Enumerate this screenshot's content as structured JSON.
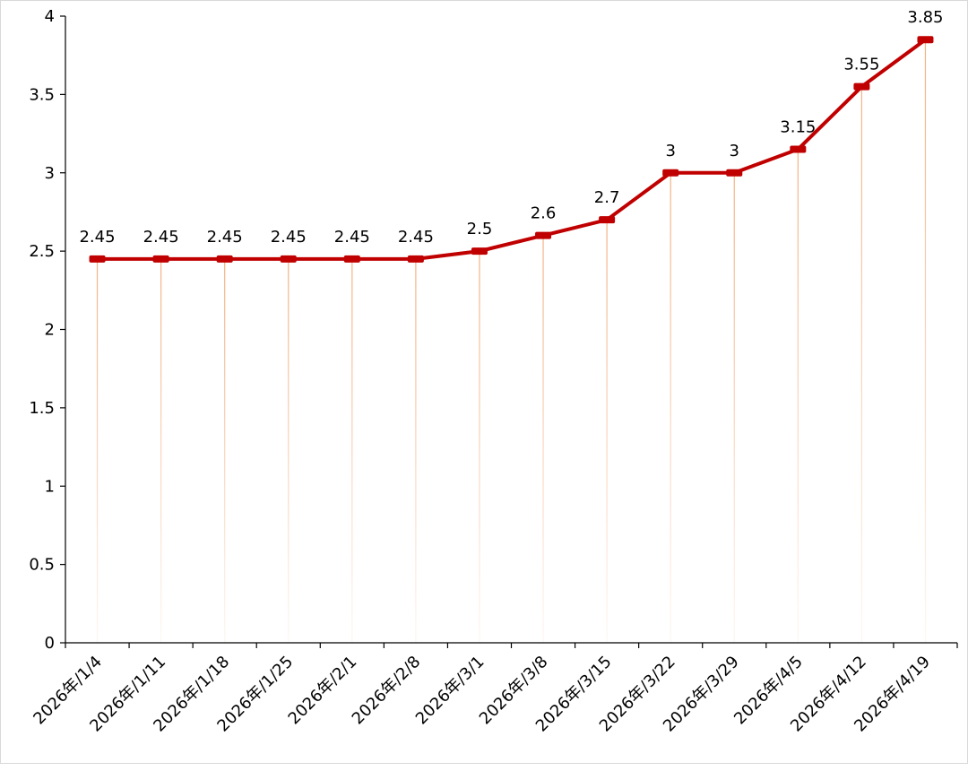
{
  "chart_data": {
    "type": "line",
    "title": "",
    "xlabel": "",
    "ylabel": "",
    "categories": [
      "2026年/1/4",
      "2026年/1/11",
      "2026年/1/18",
      "2026年/1/25",
      "2026年/2/1",
      "2026年/2/8",
      "2026年/3/1",
      "2026年/3/8",
      "2026年/3/15",
      "2026年/3/22",
      "2026年/3/29",
      "2026年/4/5",
      "2026年/4/12",
      "2026年/4/19"
    ],
    "series": [
      {
        "values": [
          2.45,
          2.45,
          2.45,
          2.45,
          2.45,
          2.45,
          2.5,
          2.6,
          2.7,
          3,
          3,
          3.15,
          3.55,
          3.85
        ],
        "data_labels": [
          "2.45",
          "2.45",
          "2.45",
          "2.45",
          "2.45",
          "2.45",
          "2.5",
          "2.6",
          "2.7",
          "3",
          "3",
          "3.15",
          "3.55",
          "3.85"
        ]
      }
    ],
    "ylim": [
      0,
      4
    ],
    "yticks": [
      0,
      0.5,
      1,
      1.5,
      2,
      2.5,
      3,
      3.5,
      4
    ],
    "ytick_labels": [
      "0",
      "0.5",
      "1",
      "1.5",
      "2",
      "2.5",
      "3",
      "3.5",
      "4"
    ],
    "grid": false,
    "drop_lines": true,
    "colors": {
      "line": "#c00000",
      "drop_line": "#f4b183",
      "axis": "#000000"
    }
  }
}
